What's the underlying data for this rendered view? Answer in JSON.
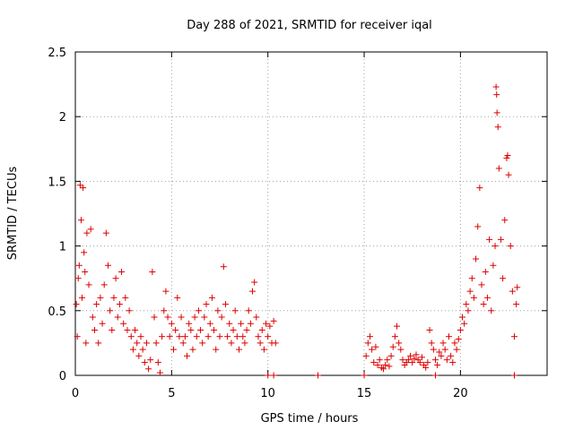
{
  "chart_data": {
    "type": "scatter",
    "title": "Day 288 of 2021, SRMTID for receiver iqal",
    "xlabel": "GPS time / hours",
    "ylabel": "SRMTID / TECUs",
    "xlim": [
      0,
      24.5
    ],
    "ylim": [
      0,
      2.5
    ],
    "xticks": [
      0,
      5,
      10,
      15,
      20
    ],
    "xtick_labels": [
      "0",
      "5",
      "10",
      "15",
      "20"
    ],
    "yticks": [
      0,
      0.5,
      1,
      1.5,
      2,
      2.5
    ],
    "ytick_labels": [
      "0",
      "0.5",
      "1",
      "1.5",
      "2",
      "2.5"
    ],
    "grid": true,
    "marker": "+",
    "color": "#dd0000",
    "series": [
      {
        "name": "SRMTID",
        "points": [
          [
            0.05,
            0.55
          ],
          [
            0.1,
            0.3
          ],
          [
            0.15,
            0.75
          ],
          [
            0.2,
            0.85
          ],
          [
            0.25,
            1.47
          ],
          [
            0.3,
            1.2
          ],
          [
            0.35,
            0.6
          ],
          [
            0.4,
            1.45
          ],
          [
            0.45,
            0.95
          ],
          [
            0.5,
            0.8
          ],
          [
            0.55,
            0.25
          ],
          [
            0.6,
            1.1
          ],
          [
            0.7,
            0.7
          ],
          [
            0.8,
            1.13
          ],
          [
            0.9,
            0.45
          ],
          [
            1.0,
            0.35
          ],
          [
            1.1,
            0.55
          ],
          [
            1.2,
            0.25
          ],
          [
            1.3,
            0.6
          ],
          [
            1.4,
            0.4
          ],
          [
            1.5,
            0.7
          ],
          [
            1.6,
            1.1
          ],
          [
            1.7,
            0.85
          ],
          [
            1.8,
            0.5
          ],
          [
            1.9,
            0.35
          ],
          [
            2.0,
            0.6
          ],
          [
            2.1,
            0.75
          ],
          [
            2.2,
            0.45
          ],
          [
            2.3,
            0.55
          ],
          [
            2.4,
            0.8
          ],
          [
            2.5,
            0.4
          ],
          [
            2.6,
            0.6
          ],
          [
            2.7,
            0.35
          ],
          [
            2.8,
            0.5
          ],
          [
            2.9,
            0.3
          ],
          [
            3.0,
            0.2
          ],
          [
            3.1,
            0.35
          ],
          [
            3.2,
            0.25
          ],
          [
            3.3,
            0.15
          ],
          [
            3.4,
            0.3
          ],
          [
            3.5,
            0.2
          ],
          [
            3.6,
            0.1
          ],
          [
            3.7,
            0.25
          ],
          [
            3.8,
            0.05
          ],
          [
            3.9,
            0.12
          ],
          [
            4.0,
            0.8
          ],
          [
            4.1,
            0.45
          ],
          [
            4.2,
            0.25
          ],
          [
            4.3,
            0.1
          ],
          [
            4.4,
            0.02
          ],
          [
            4.5,
            0.3
          ],
          [
            4.6,
            0.5
          ],
          [
            4.7,
            0.65
          ],
          [
            4.8,
            0.45
          ],
          [
            4.9,
            0.3
          ],
          [
            5.0,
            0.4
          ],
          [
            5.1,
            0.2
          ],
          [
            5.2,
            0.35
          ],
          [
            5.3,
            0.6
          ],
          [
            5.4,
            0.3
          ],
          [
            5.5,
            0.45
          ],
          [
            5.6,
            0.25
          ],
          [
            5.7,
            0.3
          ],
          [
            5.8,
            0.15
          ],
          [
            5.9,
            0.4
          ],
          [
            6.0,
            0.35
          ],
          [
            6.1,
            0.2
          ],
          [
            6.2,
            0.45
          ],
          [
            6.3,
            0.3
          ],
          [
            6.4,
            0.5
          ],
          [
            6.5,
            0.35
          ],
          [
            6.6,
            0.25
          ],
          [
            6.7,
            0.45
          ],
          [
            6.8,
            0.55
          ],
          [
            6.9,
            0.3
          ],
          [
            7.0,
            0.4
          ],
          [
            7.1,
            0.6
          ],
          [
            7.2,
            0.35
          ],
          [
            7.3,
            0.2
          ],
          [
            7.4,
            0.5
          ],
          [
            7.5,
            0.3
          ],
          [
            7.6,
            0.45
          ],
          [
            7.7,
            0.84
          ],
          [
            7.8,
            0.55
          ],
          [
            7.9,
            0.3
          ],
          [
            8.0,
            0.4
          ],
          [
            8.1,
            0.25
          ],
          [
            8.2,
            0.35
          ],
          [
            8.3,
            0.5
          ],
          [
            8.4,
            0.3
          ],
          [
            8.5,
            0.2
          ],
          [
            8.6,
            0.4
          ],
          [
            8.7,
            0.3
          ],
          [
            8.8,
            0.25
          ],
          [
            8.9,
            0.35
          ],
          [
            9.0,
            0.5
          ],
          [
            9.1,
            0.4
          ],
          [
            9.2,
            0.65
          ],
          [
            9.3,
            0.72
          ],
          [
            9.4,
            0.45
          ],
          [
            9.5,
            0.3
          ],
          [
            9.6,
            0.25
          ],
          [
            9.7,
            0.35
          ],
          [
            9.8,
            0.2
          ],
          [
            9.9,
            0.4
          ],
          [
            10.0,
            0.3
          ],
          [
            10.1,
            0.38
          ],
          [
            10.2,
            0.25
          ],
          [
            10.3,
            0.42
          ],
          [
            10.4,
            0.25
          ],
          [
            10.0,
            0.0
          ],
          [
            10.3,
            0.0
          ],
          [
            12.6,
            0.0
          ],
          [
            15.0,
            0.0
          ],
          [
            18.7,
            0.0
          ],
          [
            22.8,
            0.0
          ],
          [
            15.1,
            0.15
          ],
          [
            15.2,
            0.25
          ],
          [
            15.3,
            0.3
          ],
          [
            15.4,
            0.2
          ],
          [
            15.5,
            0.1
          ],
          [
            15.6,
            0.22
          ],
          [
            15.7,
            0.08
          ],
          [
            15.8,
            0.12
          ],
          [
            15.9,
            0.06
          ],
          [
            16.0,
            0.05
          ],
          [
            16.1,
            0.08
          ],
          [
            16.2,
            0.12
          ],
          [
            16.3,
            0.07
          ],
          [
            16.4,
            0.15
          ],
          [
            16.5,
            0.22
          ],
          [
            16.6,
            0.3
          ],
          [
            16.7,
            0.38
          ],
          [
            16.8,
            0.25
          ],
          [
            16.9,
            0.2
          ],
          [
            17.0,
            0.12
          ],
          [
            17.1,
            0.08
          ],
          [
            17.2,
            0.1
          ],
          [
            17.3,
            0.12
          ],
          [
            17.4,
            0.15
          ],
          [
            17.5,
            0.1
          ],
          [
            17.6,
            0.13
          ],
          [
            17.7,
            0.16
          ],
          [
            17.8,
            0.12
          ],
          [
            17.9,
            0.1
          ],
          [
            18.0,
            0.14
          ],
          [
            18.1,
            0.08
          ],
          [
            18.2,
            0.06
          ],
          [
            18.3,
            0.1
          ],
          [
            18.4,
            0.35
          ],
          [
            18.5,
            0.25
          ],
          [
            18.6,
            0.2
          ],
          [
            18.7,
            0.12
          ],
          [
            18.8,
            0.08
          ],
          [
            18.9,
            0.18
          ],
          [
            19.0,
            0.15
          ],
          [
            19.1,
            0.25
          ],
          [
            19.2,
            0.2
          ],
          [
            19.3,
            0.12
          ],
          [
            19.4,
            0.3
          ],
          [
            19.5,
            0.15
          ],
          [
            19.6,
            0.1
          ],
          [
            19.7,
            0.25
          ],
          [
            19.8,
            0.2
          ],
          [
            19.9,
            0.28
          ],
          [
            20.0,
            0.35
          ],
          [
            20.1,
            0.45
          ],
          [
            20.2,
            0.4
          ],
          [
            20.3,
            0.55
          ],
          [
            20.4,
            0.5
          ],
          [
            20.5,
            0.65
          ],
          [
            20.6,
            0.75
          ],
          [
            20.7,
            0.6
          ],
          [
            20.8,
            0.9
          ],
          [
            20.9,
            1.15
          ],
          [
            21.0,
            1.45
          ],
          [
            21.1,
            0.7
          ],
          [
            21.2,
            0.55
          ],
          [
            21.3,
            0.8
          ],
          [
            21.4,
            0.6
          ],
          [
            21.5,
            1.05
          ],
          [
            21.6,
            0.5
          ],
          [
            21.7,
            0.85
          ],
          [
            21.8,
            1.0
          ],
          [
            21.85,
            2.23
          ],
          [
            21.88,
            2.17
          ],
          [
            21.9,
            2.03
          ],
          [
            21.95,
            1.92
          ],
          [
            22.0,
            1.6
          ],
          [
            22.1,
            1.05
          ],
          [
            22.2,
            0.75
          ],
          [
            22.3,
            1.2
          ],
          [
            22.4,
            1.68
          ],
          [
            22.45,
            1.7
          ],
          [
            22.5,
            1.55
          ],
          [
            22.6,
            1.0
          ],
          [
            22.7,
            0.65
          ],
          [
            22.8,
            0.3
          ],
          [
            22.9,
            0.55
          ],
          [
            22.95,
            0.68
          ]
        ]
      }
    ]
  }
}
